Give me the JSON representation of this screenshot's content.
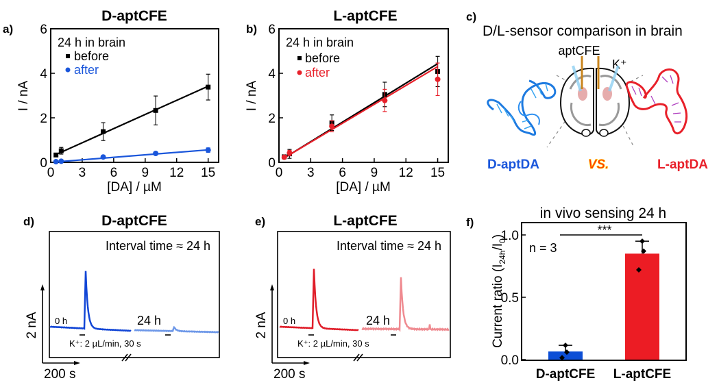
{
  "chart_data": [
    {
      "id": "a",
      "type": "line",
      "panel_label": "a)",
      "title": "D-aptCFE",
      "xlabel": "[DA] / µM",
      "ylabel": "I / nA",
      "xlim": [
        0,
        16
      ],
      "ylim": [
        0,
        6
      ],
      "xticks": [
        0,
        3,
        6,
        9,
        12,
        15
      ],
      "yticks": [
        0,
        2,
        4,
        6
      ],
      "legend_title": "24 h in brain",
      "legend_position": "top-left",
      "series": [
        {
          "name": "before",
          "color": "#000000",
          "marker": "square",
          "x": [
            0.5,
            1,
            5,
            10,
            15
          ],
          "y": [
            0.33,
            0.52,
            1.38,
            2.33,
            3.38
          ],
          "err": [
            0.05,
            0.15,
            0.4,
            0.65,
            0.58
          ],
          "fit": {
            "x": [
              0.5,
              15
            ],
            "y": [
              0.35,
              3.42
            ]
          }
        },
        {
          "name": "after",
          "color": "#1a56db",
          "marker": "circle",
          "x": [
            0.5,
            1,
            5,
            10,
            15
          ],
          "y": [
            0.03,
            0.05,
            0.24,
            0.4,
            0.55
          ],
          "err": [
            0.02,
            0.02,
            0.04,
            0.07,
            0.1
          ],
          "fit": {
            "x": [
              0.5,
              15
            ],
            "y": [
              0.02,
              0.56
            ]
          }
        }
      ]
    },
    {
      "id": "b",
      "type": "line",
      "panel_label": "b)",
      "title": "L-aptCFE",
      "xlabel": "[DA] / µM",
      "ylabel": "I / nA",
      "xlim": [
        0,
        16
      ],
      "ylim": [
        0,
        6
      ],
      "xticks": [
        0,
        3,
        6,
        9,
        12,
        15
      ],
      "yticks": [
        0,
        2,
        4,
        6
      ],
      "legend_title": "24 h in brain",
      "legend_position": "top-left",
      "series": [
        {
          "name": "before",
          "color": "#000000",
          "marker": "square",
          "x": [
            0.5,
            1,
            5,
            10,
            15
          ],
          "y": [
            0.25,
            0.38,
            1.78,
            3.05,
            4.08
          ],
          "err": [
            0.05,
            0.2,
            0.35,
            0.55,
            0.68
          ],
          "fit": {
            "x": [
              0.5,
              15
            ],
            "y": [
              0.2,
              4.43
            ]
          }
        },
        {
          "name": "after",
          "color": "#e8202a",
          "marker": "circle",
          "x": [
            0.5,
            1,
            5,
            10,
            15
          ],
          "y": [
            0.23,
            0.42,
            1.62,
            2.78,
            3.73
          ],
          "err": [
            0.05,
            0.12,
            0.25,
            0.5,
            0.73
          ],
          "fit": {
            "x": [
              0.5,
              15
            ],
            "y": [
              0.2,
              4.3
            ]
          }
        }
      ]
    },
    {
      "id": "d",
      "type": "line",
      "panel_label": "d)",
      "title": "D-aptCFE",
      "annotation": "Interval time ≈ 24 h",
      "scale_y": "2 nA",
      "scale_x": "200 s",
      "stimulus_label": "K⁺: 2 µL/min, 30 s",
      "segments": [
        {
          "name": "0 h",
          "color": "#1246d6",
          "peak_nA": 4.3
        },
        {
          "name": "24 h",
          "color": "#6e98e8",
          "peak_nA": 0.35
        }
      ]
    },
    {
      "id": "e",
      "type": "line",
      "panel_label": "e)",
      "title": "L-aptCFE",
      "annotation": "Interval time ≈ 24 h",
      "scale_y": "2 nA",
      "scale_x": "200 s",
      "stimulus_label": "K⁺: 2 µL/min, 30 s",
      "segments": [
        {
          "name": "0 h",
          "color": "#e01e2a",
          "peak_nA": 4.4
        },
        {
          "name": "24 h",
          "color": "#ef8a90",
          "peak_nA": 3.7
        }
      ]
    },
    {
      "id": "f",
      "type": "bar",
      "panel_label": "f)",
      "title": "in vivo sensing 24 h",
      "ylabel_main": "Current ratio (I",
      "ylabel_sub1": "24h",
      "ylabel_mid": "/I",
      "ylabel_sub2": "0",
      "ylabel_end": ")",
      "ylim": [
        0,
        1.1
      ],
      "yticks": [
        "0.0",
        "0.5",
        "1.0"
      ],
      "ytick_values": [
        0,
        0.5,
        1.0
      ],
      "annotation": "n = 3",
      "significance": "***",
      "categories": [
        "D-aptCFE",
        "L-aptCFE"
      ],
      "values": [
        0.065,
        0.85
      ],
      "errors": [
        0.05,
        0.1
      ],
      "colors": [
        "#0d4fd6",
        "#ec1c24"
      ],
      "points": [
        [
          0.115,
          0.06,
          0.015
        ],
        [
          0.95,
          0.87,
          0.72
        ]
      ]
    }
  ],
  "panel_c": {
    "label": "c)",
    "title": "D/L-sensor comparison in brain",
    "electrode_label": "aptCFE",
    "ion_label": "K⁺",
    "left_label": "D-aptDA",
    "center_label": "VS.",
    "right_label": "L-aptDA",
    "left_color": "#1a56db",
    "center_color": "#ff3b00",
    "right_color": "#e8202a"
  }
}
